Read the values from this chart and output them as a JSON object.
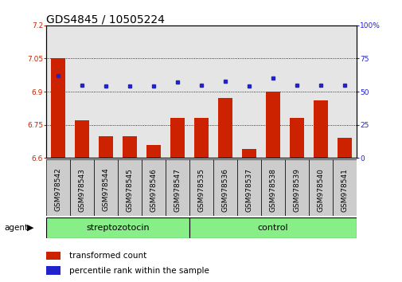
{
  "title": "GDS4845 / 10505224",
  "samples": [
    "GSM978542",
    "GSM978543",
    "GSM978544",
    "GSM978545",
    "GSM978546",
    "GSM978547",
    "GSM978535",
    "GSM978536",
    "GSM978537",
    "GSM978538",
    "GSM978539",
    "GSM978540",
    "GSM978541"
  ],
  "bar_values": [
    7.05,
    6.77,
    6.7,
    6.7,
    6.66,
    6.78,
    6.78,
    6.87,
    6.64,
    6.9,
    6.78,
    6.86,
    6.69
  ],
  "dot_values": [
    62,
    55,
    54,
    54,
    54,
    57,
    55,
    58,
    54,
    60,
    55,
    55,
    55
  ],
  "bar_color": "#cc2200",
  "dot_color": "#2222cc",
  "ylim_left": [
    6.6,
    7.2
  ],
  "ylim_right": [
    0,
    100
  ],
  "yticks_left": [
    6.6,
    6.75,
    6.9,
    7.05,
    7.2
  ],
  "yticks_right": [
    0,
    25,
    50,
    75,
    100
  ],
  "yticklabels_left": [
    "6.6",
    "6.75",
    "6.9",
    "7.05",
    "7.2"
  ],
  "yticklabels_right": [
    "0",
    "25",
    "50",
    "75",
    "100%"
  ],
  "gridlines": [
    6.75,
    6.9,
    7.05
  ],
  "agent_label": "agent",
  "group1_label": "streptozotocin",
  "group2_label": "control",
  "legend1": "transformed count",
  "legend2": "percentile rank within the sample",
  "background_color": "#ffffff",
  "plot_bg": "#ffffff",
  "col_bg": "#cccccc",
  "group_bg": "#88ee88",
  "title_fontsize": 10,
  "tick_fontsize": 6.5,
  "label_fontsize": 7.5,
  "group_fontsize": 8
}
